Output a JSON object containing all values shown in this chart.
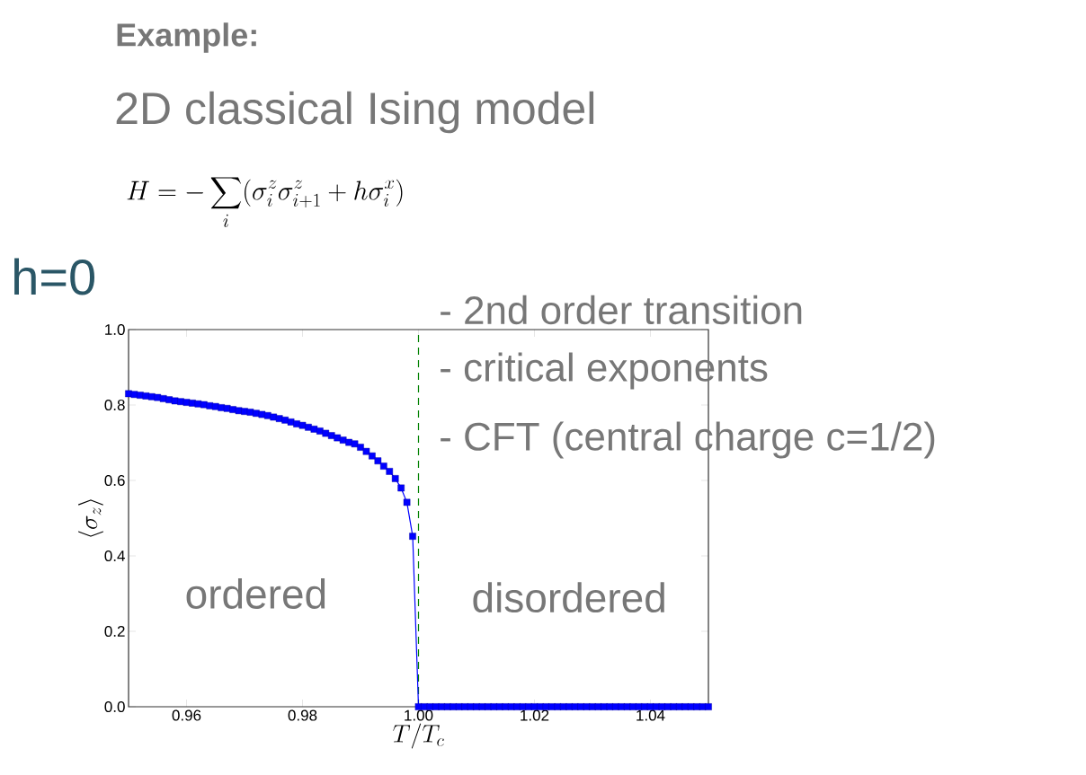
{
  "chart_data": {
    "type": "line",
    "title": "Example:",
    "subtitle": "2D classical Ising model",
    "xlabel": "T/T_c",
    "ylabel": "\\langle \\sigma_z \\rangle",
    "x": [
      0.95,
      0.951,
      0.952,
      0.953,
      0.954,
      0.955,
      0.956,
      0.957,
      0.958,
      0.959,
      0.96,
      0.961,
      0.962,
      0.963,
      0.964,
      0.965,
      0.966,
      0.967,
      0.968,
      0.969,
      0.97,
      0.971,
      0.972,
      0.973,
      0.974,
      0.975,
      0.976,
      0.977,
      0.978,
      0.979,
      0.98,
      0.981,
      0.982,
      0.983,
      0.984,
      0.985,
      0.986,
      0.987,
      0.988,
      0.989,
      0.99,
      0.991,
      0.992,
      0.993,
      0.994,
      0.995,
      0.996,
      0.997,
      0.998,
      0.999,
      1.0,
      1.001,
      1.002,
      1.003,
      1.004,
      1.005,
      1.006,
      1.007,
      1.008,
      1.009,
      1.01,
      1.011,
      1.012,
      1.013,
      1.014,
      1.015,
      1.016,
      1.017,
      1.018,
      1.019,
      1.02,
      1.021,
      1.022,
      1.023,
      1.024,
      1.025,
      1.026,
      1.027,
      1.028,
      1.029,
      1.03,
      1.031,
      1.032,
      1.033,
      1.034,
      1.035,
      1.036,
      1.037,
      1.038,
      1.039,
      1.04,
      1.041,
      1.042,
      1.043,
      1.044,
      1.045,
      1.046,
      1.047,
      1.048,
      1.049,
      1.05
    ],
    "series": [
      {
        "color": "#0000ff",
        "values": [
          0.83,
          0.828,
          0.826,
          0.824,
          0.822,
          0.82,
          0.817,
          0.814,
          0.811,
          0.809,
          0.807,
          0.805,
          0.803,
          0.801,
          0.798,
          0.796,
          0.793,
          0.791,
          0.788,
          0.785,
          0.783,
          0.781,
          0.778,
          0.775,
          0.772,
          0.768,
          0.764,
          0.76,
          0.755,
          0.75,
          0.746,
          0.741,
          0.736,
          0.731,
          0.725,
          0.719,
          0.713,
          0.707,
          0.701,
          0.697,
          0.688,
          0.677,
          0.665,
          0.652,
          0.638,
          0.624,
          0.605,
          0.58,
          0.542,
          0.452,
          0,
          0,
          0,
          0,
          0,
          0,
          0,
          0,
          0,
          0,
          0,
          0,
          0,
          0,
          0,
          0,
          0,
          0,
          0,
          0,
          0,
          0,
          0,
          0,
          0,
          0,
          0,
          0,
          0,
          0,
          0,
          0,
          0,
          0,
          0,
          0,
          0,
          0,
          0,
          0,
          0,
          0,
          0,
          0,
          0,
          0,
          0,
          0,
          0,
          0,
          0
        ]
      }
    ],
    "marker": "square",
    "line_style": "solid",
    "xlim": [
      0.95,
      1.05
    ],
    "ylim": [
      0,
      1
    ],
    "xticks": [
      {
        "value": 0.96,
        "label": "0.96"
      },
      {
        "value": 0.98,
        "label": "0.98"
      },
      {
        "value": 1.0,
        "label": "1.00"
      },
      {
        "value": 1.02,
        "label": "1.02"
      },
      {
        "value": 1.04,
        "label": "1.04"
      }
    ],
    "yticks": [
      {
        "value": 0,
        "label": "0.0"
      },
      {
        "value": 0.2,
        "label": "0.2"
      },
      {
        "value": 0.4,
        "label": "0.4"
      },
      {
        "value": 0.6,
        "label": "0.6"
      },
      {
        "value": 0.8,
        "label": "0.8"
      },
      {
        "value": 1.0,
        "label": "1.0"
      }
    ],
    "ref_lines": [
      {
        "axis": "x",
        "value": 1.0,
        "color": "#008000",
        "line_style": "dashed"
      }
    ],
    "annotations": [
      "H = -\\sum_i(\\sigma_i^z\\sigma_{i+1}^z + h\\sigma_i^x)",
      "h=0",
      "- 2nd order transition",
      "- critical exponents",
      "- CFT (central charge c=1/2)",
      "ordered",
      "disordered"
    ]
  }
}
